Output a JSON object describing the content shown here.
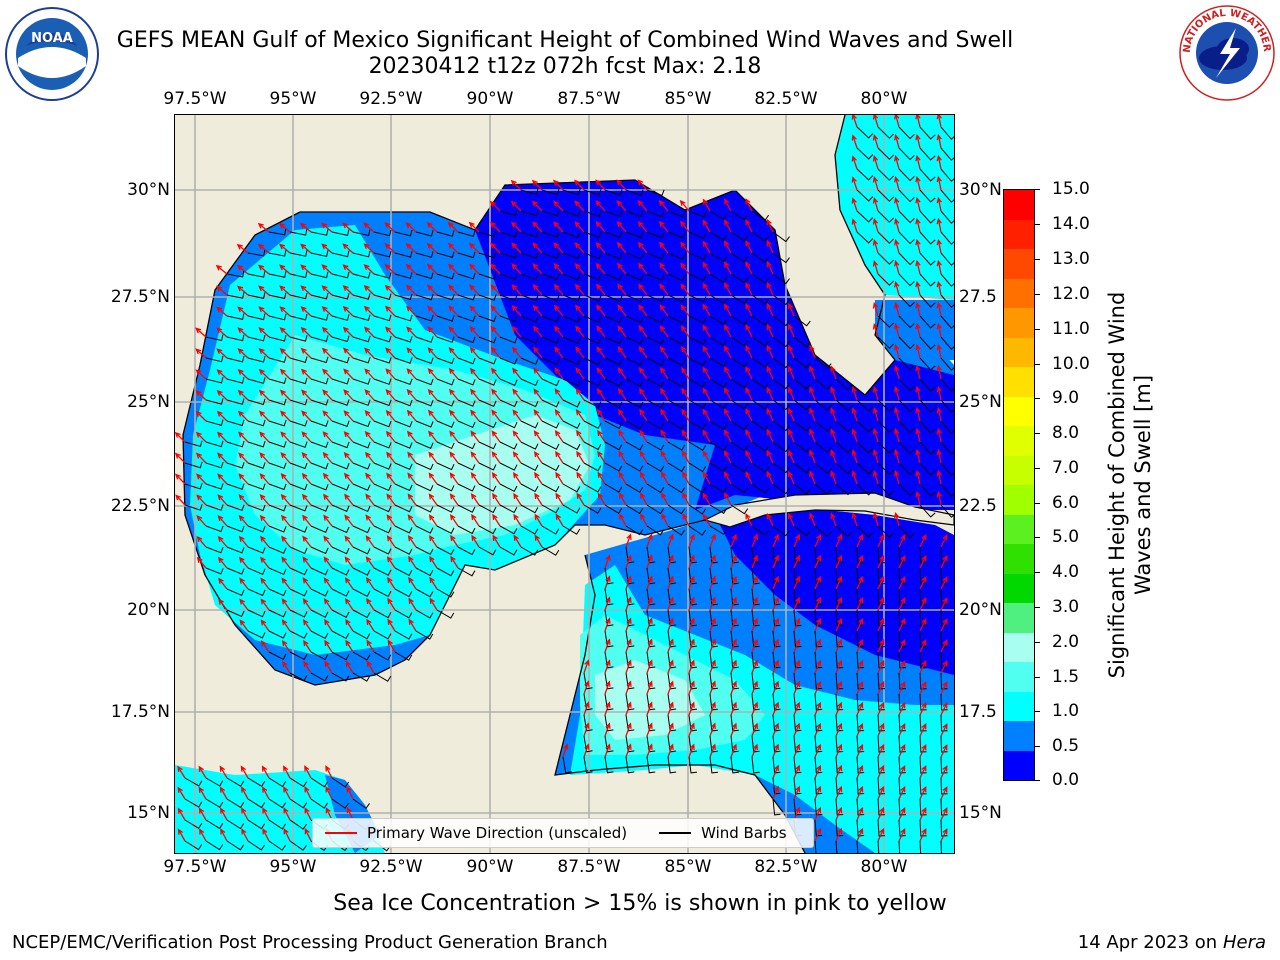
{
  "title_line1": "GEFS MEAN Gulf of Mexico Significant Height of Combined Wind Waves and Swell",
  "title_line2": "20230412 t12z 072h fcst   Max: 2.18",
  "x_ticks": [
    "97.5°W",
    "95°W",
    "92.5°W",
    "90°W",
    "87.5°W",
    "85°W",
    "82.5°W",
    "80°W"
  ],
  "y_ticks": [
    "30°N",
    "27.5°N",
    "25°N",
    "22.5°N",
    "20°N",
    "17.5°N",
    "15°N"
  ],
  "y_ticks_right": [
    "30°N",
    "27.5",
    "25°N",
    "22.5",
    "20°N",
    "17.5",
    "15°N"
  ],
  "colorbar": {
    "label": "Significant Height of Combined Wind Waves and Swell [m]",
    "ticks": [
      "15.0",
      "14.0",
      "13.0",
      "12.0",
      "11.0",
      "10.0",
      "9.0",
      "8.0",
      "7.0",
      "6.0",
      "5.0",
      "4.0",
      "3.0",
      "2.0",
      "1.5",
      "1.0",
      "0.5",
      "0.0"
    ],
    "colors": [
      "#ff0000",
      "#ff2000",
      "#ff4800",
      "#ff7000",
      "#ff9800",
      "#ffb800",
      "#ffe000",
      "#ffff00",
      "#e0ff00",
      "#c8ff00",
      "#a0ff00",
      "#5cf020",
      "#30e000",
      "#00d800",
      "#50f080",
      "#a8fff0",
      "#50fff0",
      "#00ffff",
      "#0080ff",
      "#0000ff"
    ]
  },
  "legend": {
    "wave_dir": "Primary Wave Direction (unscaled)",
    "wind_barbs": "Wind Barbs"
  },
  "note": "Sea Ice Concentration > 15% is shown in pink to yellow",
  "footer_left": "NCEP/EMC/Verification Post Processing Product Generation Branch",
  "footer_date": "14 Apr 2023 on ",
  "footer_machine": "Hera",
  "logo_left": "NOAA",
  "logo_right": "NATIONAL WEATHER SERVICE",
  "colors": {
    "land": "#efecdc",
    "deep": "#0000ff",
    "mid": "#0080ff",
    "shallow": "#00ffff",
    "high": "#50fff0",
    "highest": "#a8fff0",
    "arrow": "#ff0000",
    "grid": "#b0b0b0"
  }
}
